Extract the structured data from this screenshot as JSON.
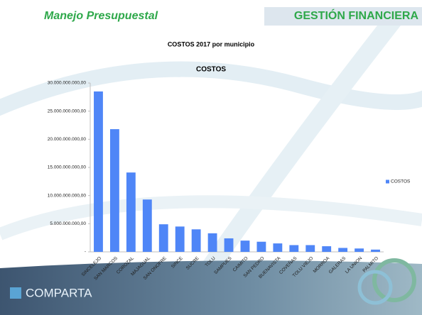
{
  "header": {
    "left": "Manejo Presupuestal",
    "right": "GESTIÓN FINANCIERA"
  },
  "footer": {
    "logo": "COMPARTA"
  },
  "chart_data": {
    "type": "bar",
    "title": "COSTOS 2017 por municipio",
    "subtitle": "COSTOS",
    "categories": [
      "SINCELEJO",
      "SAN MARCOS",
      "COROZAL",
      "MAJAGUAL",
      "SAN ONOFRE",
      "SINCE",
      "SUCRE",
      "TOLU",
      "SAMPUES",
      "CAIMITO",
      "SAN PEDRO",
      "BUENAVISTA",
      "COVEÑAS",
      "TOLU VIEJO",
      "MORROA",
      "GALERAS",
      "LA UNION",
      "PALMITO"
    ],
    "series": [
      {
        "name": "COSTOS",
        "color": "#4f86f7",
        "values": [
          28500000000,
          21800000000,
          14100000000,
          9300000000,
          4900000000,
          4500000000,
          4000000000,
          3300000000,
          2400000000,
          2000000000,
          1800000000,
          1500000000,
          1200000000,
          1200000000,
          1000000000,
          700000000,
          600000000,
          400000000
        ]
      }
    ],
    "ylim": [
      0,
      30000000000
    ],
    "yticks": [
      {
        "value": 0,
        "label": "-"
      },
      {
        "value": 5000000000,
        "label": "5.000.000.000,00"
      },
      {
        "value": 10000000000,
        "label": "10.000.000.000,00"
      },
      {
        "value": 15000000000,
        "label": "15.000.000.000,00"
      },
      {
        "value": 20000000000,
        "label": "20.000.000.000,00"
      },
      {
        "value": 25000000000,
        "label": "25.000.000.000,00"
      },
      {
        "value": 30000000000,
        "label": "30.000.000.000,00"
      }
    ],
    "grid": false,
    "legend": "right"
  }
}
